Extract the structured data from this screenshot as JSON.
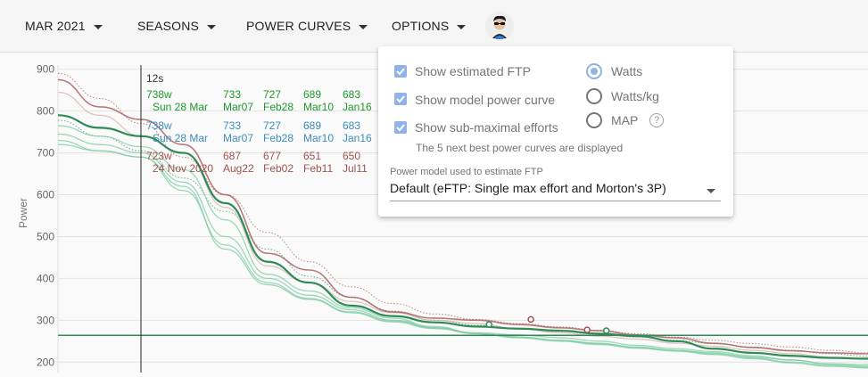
{
  "toolbar": {
    "date_label": "MAR 2021",
    "seasons_label": "SEASONS",
    "power_curves_label": "POWER CURVES",
    "options_label": "OPTIONS",
    "avatar_icon": "user-avatar-icon"
  },
  "options_panel": {
    "show_eftp": {
      "label": "Show estimated FTP",
      "checked": true
    },
    "show_model": {
      "label": "Show model power curve",
      "checked": true
    },
    "show_sub": {
      "label": "Show sub-maximal efforts",
      "checked": true
    },
    "units": [
      {
        "label": "Watts",
        "selected": true
      },
      {
        "label": "Watts/kg",
        "selected": false
      },
      {
        "label": "MAP",
        "selected": false
      }
    ],
    "help_symbol": "?",
    "note": "The 5 next best power curves are displayed",
    "model_label": "Power model used to estimate FTP",
    "model_value": "Default (eFTP: Single max effort and Morton's 3P)"
  },
  "colors": {
    "accent": "#8fb3e6",
    "green_dark": "#2e8b57",
    "green_light": "#7ecba1",
    "brown": "#a0524d",
    "brown_light": "#d4b3af",
    "blue": "#3a8dbd",
    "green_text": "#1a9a2a"
  },
  "tooltip": {
    "duration": "12s",
    "rows": [
      {
        "color": "green_text",
        "cells": [
          {
            "value": "738w",
            "date": "Sun 28 Mar"
          },
          {
            "value": "733",
            "date": "Mar07"
          },
          {
            "value": "727",
            "date": "Feb28"
          },
          {
            "value": "689",
            "date": "Mar10"
          },
          {
            "value": "683",
            "date": "Jan16"
          }
        ]
      },
      {
        "color": "blue",
        "cells": [
          {
            "value": "738w",
            "date": "Sun 28 Mar"
          },
          {
            "value": "733",
            "date": "Mar07"
          },
          {
            "value": "727",
            "date": "Feb28"
          },
          {
            "value": "689",
            "date": "Mar10"
          },
          {
            "value": "683",
            "date": "Jan16"
          }
        ]
      },
      {
        "color": "brown",
        "cells": [
          {
            "value": "723w",
            "date": "24 Nov 2020"
          },
          {
            "value": "687",
            "date": "Aug22"
          },
          {
            "value": "677",
            "date": "Feb02"
          },
          {
            "value": "651",
            "date": "Feb11"
          },
          {
            "value": "650",
            "date": "Jul11"
          }
        ]
      }
    ]
  },
  "chart_data": {
    "type": "line",
    "ylabel": "Power",
    "ylim": [
      175,
      910
    ],
    "yticks": [
      200,
      300,
      400,
      500,
      600,
      700,
      800,
      900
    ],
    "eftp_line": 264,
    "series": [
      {
        "color": "green_dark",
        "width": 2.2,
        "values": [
          790,
          760,
          740,
          700,
          580,
          440,
          390,
          335,
          310,
          295,
          285,
          280,
          275,
          268,
          262,
          250,
          232,
          222,
          215,
          210,
          208
        ]
      },
      {
        "color": "brown",
        "width": 1.6,
        "values": [
          875,
          810,
          780,
          720,
          600,
          460,
          420,
          355,
          320,
          305,
          300,
          290,
          282,
          275,
          265,
          258,
          245,
          235,
          227,
          222,
          220
        ]
      },
      {
        "color": "brown_light",
        "width": 1.3,
        "values": [
          845,
          790,
          740,
          700,
          570,
          430,
          390,
          345,
          318,
          300,
          292,
          280,
          270,
          262,
          255,
          245,
          238,
          228,
          220,
          212,
          210
        ]
      },
      {
        "color": "green_light",
        "width": 1.3,
        "values": [
          765,
          740,
          715,
          660,
          540,
          410,
          370,
          330,
          305,
          282,
          270,
          265,
          258,
          250,
          240,
          232,
          225,
          215,
          205,
          195,
          190
        ]
      },
      {
        "color": "green_light",
        "width": 1.3,
        "values": [
          745,
          720,
          700,
          630,
          500,
          400,
          360,
          325,
          300,
          285,
          268,
          260,
          252,
          245,
          235,
          228,
          220,
          210,
          200,
          192,
          188
        ]
      },
      {
        "color": "green_light",
        "width": 1.3,
        "values": [
          730,
          705,
          690,
          610,
          480,
          390,
          352,
          320,
          298,
          282,
          268,
          258,
          250,
          242,
          233,
          226,
          218,
          208,
          198,
          190,
          186
        ]
      },
      {
        "color": "green_light",
        "width": 1.3,
        "values": [
          720,
          705,
          690,
          620,
          470,
          385,
          350,
          318,
          296,
          280,
          268,
          260,
          252,
          244,
          236,
          228,
          222,
          212,
          205,
          196,
          194
        ]
      }
    ],
    "model_curves": [
      {
        "color": "brown",
        "values": [
          890,
          830,
          770,
          690,
          600,
          510,
          440,
          380,
          340,
          315,
          302,
          292,
          284,
          276,
          268,
          260,
          252,
          244,
          236,
          228,
          222
        ]
      },
      {
        "color": "green_dark",
        "values": [
          778,
          740,
          705,
          640,
          560,
          470,
          405,
          355,
          322,
          300,
          288,
          280,
          273,
          266,
          260,
          252,
          244,
          236,
          228,
          220,
          214
        ]
      }
    ],
    "markers": [
      {
        "color": "green_dark",
        "index": 10.3,
        "value": 290
      },
      {
        "color": "brown",
        "index": 11.3,
        "value": 302
      },
      {
        "color": "brown",
        "index": 12.7,
        "value": 277
      },
      {
        "color": "green_dark",
        "index": 13.2,
        "value": 275
      }
    ]
  }
}
